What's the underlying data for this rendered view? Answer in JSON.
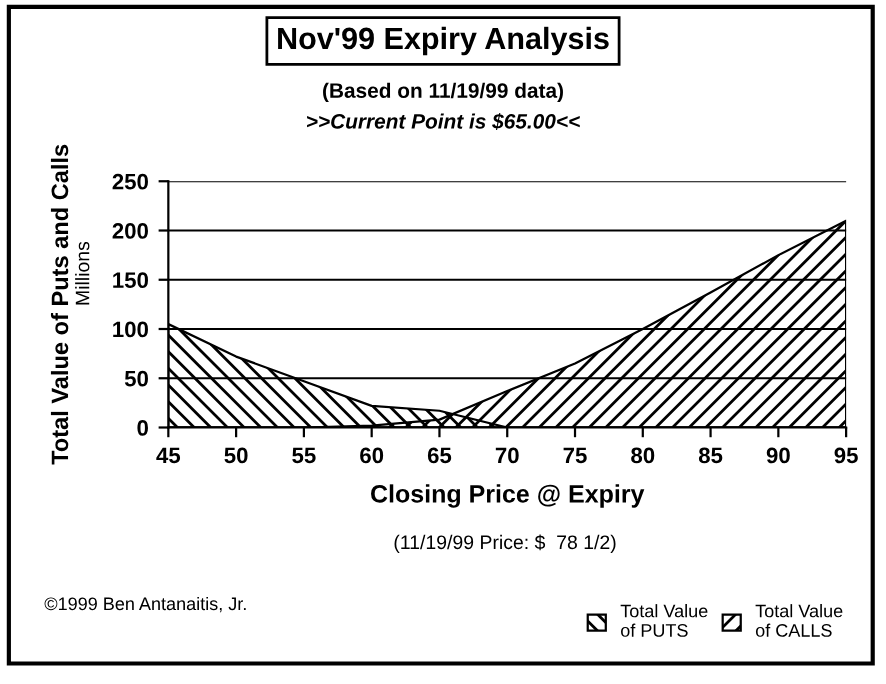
{
  "chart_data": {
    "type": "area",
    "title": "Nov'99 Expiry Analysis",
    "subtitle": "(Based on 11/19/99 data)\n>>Current Point is $65.00<<",
    "xlabel": "Closing Price @ Expiry",
    "ylabel": "Total Value of Puts and Calls",
    "x": [
      45,
      50,
      55,
      60,
      65,
      70,
      75,
      80,
      85,
      90,
      95
    ],
    "series": [
      {
        "name": "Total Value\nof CALLS",
        "color": "#000000",
        "values": [
          0,
          0,
          0,
          2,
          8,
          37,
          65,
          100,
          137,
          175,
          210
        ]
      },
      {
        "name": "Total Value\nof PUTS",
        "color": "#000000",
        "values": [
          105,
          72,
          47,
          22,
          17,
          0,
          0,
          0,
          0,
          0,
          0
        ]
      }
    ],
    "xlim": [
      45,
      95
    ],
    "xticks": [
      45,
      50,
      55,
      60,
      65,
      70,
      75,
      80,
      85,
      90,
      95
    ],
    "ylim": [
      0,
      250
    ],
    "yticks": [
      0,
      50,
      100,
      150,
      200,
      250
    ],
    "grid": "y",
    "legend": "bottom right",
    "annotations": [
      "Millions",
      "(11/19/99 Price: $  78 1/2)",
      "©1999 Ben Antanaitis, Jr."
    ]
  }
}
